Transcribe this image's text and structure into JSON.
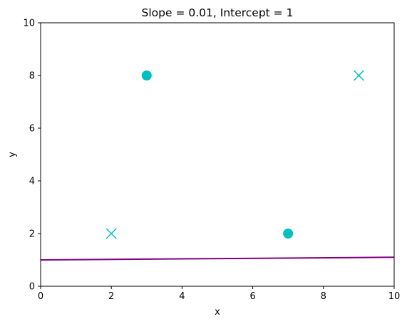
{
  "chart_data": {
    "type": "scatter",
    "title": "Slope = 0.01, Intercept = 1",
    "xlabel": "x",
    "ylabel": "y",
    "xlim": [
      0,
      10
    ],
    "ylim": [
      0,
      10
    ],
    "xticks": [
      0,
      2,
      4,
      6,
      8,
      10
    ],
    "yticks": [
      0,
      2,
      4,
      6,
      8,
      10
    ],
    "grid": false,
    "series": [
      {
        "marker": "circle",
        "color": "#00bfbf",
        "points": [
          [
            3,
            8
          ],
          [
            7,
            2
          ]
        ]
      },
      {
        "marker": "x",
        "color": "#00bfbf",
        "points": [
          [
            2,
            2
          ],
          [
            9,
            8
          ]
        ]
      }
    ],
    "line": {
      "slope": 0.01,
      "intercept": 1,
      "color": "#800080"
    }
  }
}
